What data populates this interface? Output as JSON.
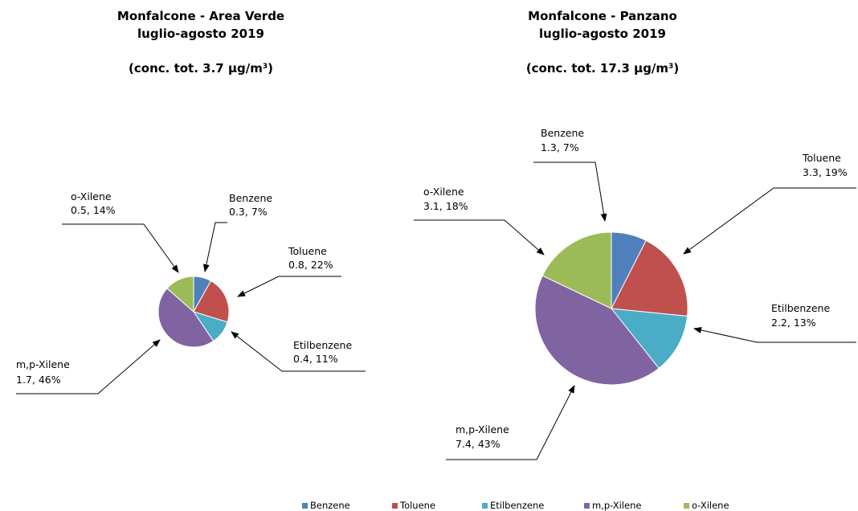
{
  "chart_data": [
    {
      "type": "pie",
      "title_line1": "Monfalcone  - Area Verde",
      "title_line2": "luglio-agosto 2019",
      "concentration_prefix": "(conc. tot. 3.7 ",
      "concentration_unit_base": "µg/m",
      "concentration_unit_sup": "3",
      "concentration_suffix": ")",
      "slices": [
        {
          "name": "Benzene",
          "value": 0.3,
          "percent": "7%",
          "value_label": "0.3, 7%"
        },
        {
          "name": "Toluene",
          "value": 0.8,
          "percent": "22%",
          "value_label": "0.8, 22%"
        },
        {
          "name": "Etilbenzene",
          "value": 0.4,
          "percent": "11%",
          "value_label": "0.4, 11%"
        },
        {
          "name": "m,p-Xilene",
          "value": 1.7,
          "percent": "46%",
          "value_label": "1.7, 46%"
        },
        {
          "name": "o-Xilene",
          "value": 0.5,
          "percent": "14%",
          "value_label": "0.5, 14%"
        }
      ]
    },
    {
      "type": "pie",
      "title_line1": "Monfalcone  - Panzano",
      "title_line2": "luglio-agosto 2019",
      "concentration_prefix": "(conc. tot. 17.3 ",
      "concentration_unit_base": "µg/m",
      "concentration_unit_sup": "3",
      "concentration_suffix": ")",
      "slices": [
        {
          "name": "Benzene",
          "value": 1.3,
          "percent": "7%",
          "value_label": "1.3, 7%"
        },
        {
          "name": "Toluene",
          "value": 3.3,
          "percent": "19%",
          "value_label": "3.3, 19%"
        },
        {
          "name": "Etilbenzene",
          "value": 2.2,
          "percent": "13%",
          "value_label": "2.2, 13%"
        },
        {
          "name": "m,p-Xilene",
          "value": 7.4,
          "percent": "43%",
          "value_label": "7.4, 43%"
        },
        {
          "name": "o-Xilene",
          "value": 3.1,
          "percent": "18%",
          "value_label": "3.1, 18%"
        }
      ]
    }
  ],
  "legend": [
    {
      "name": "Benzene",
      "color": "#4F81BD"
    },
    {
      "name": "Toluene",
      "color": "#C0504D"
    },
    {
      "name": "Etilbenzene",
      "color": "#4BACC6"
    },
    {
      "name": "m,p-Xilene",
      "color": "#8064A2"
    },
    {
      "name": "o-Xilene",
      "color": "#9BBB59"
    }
  ]
}
